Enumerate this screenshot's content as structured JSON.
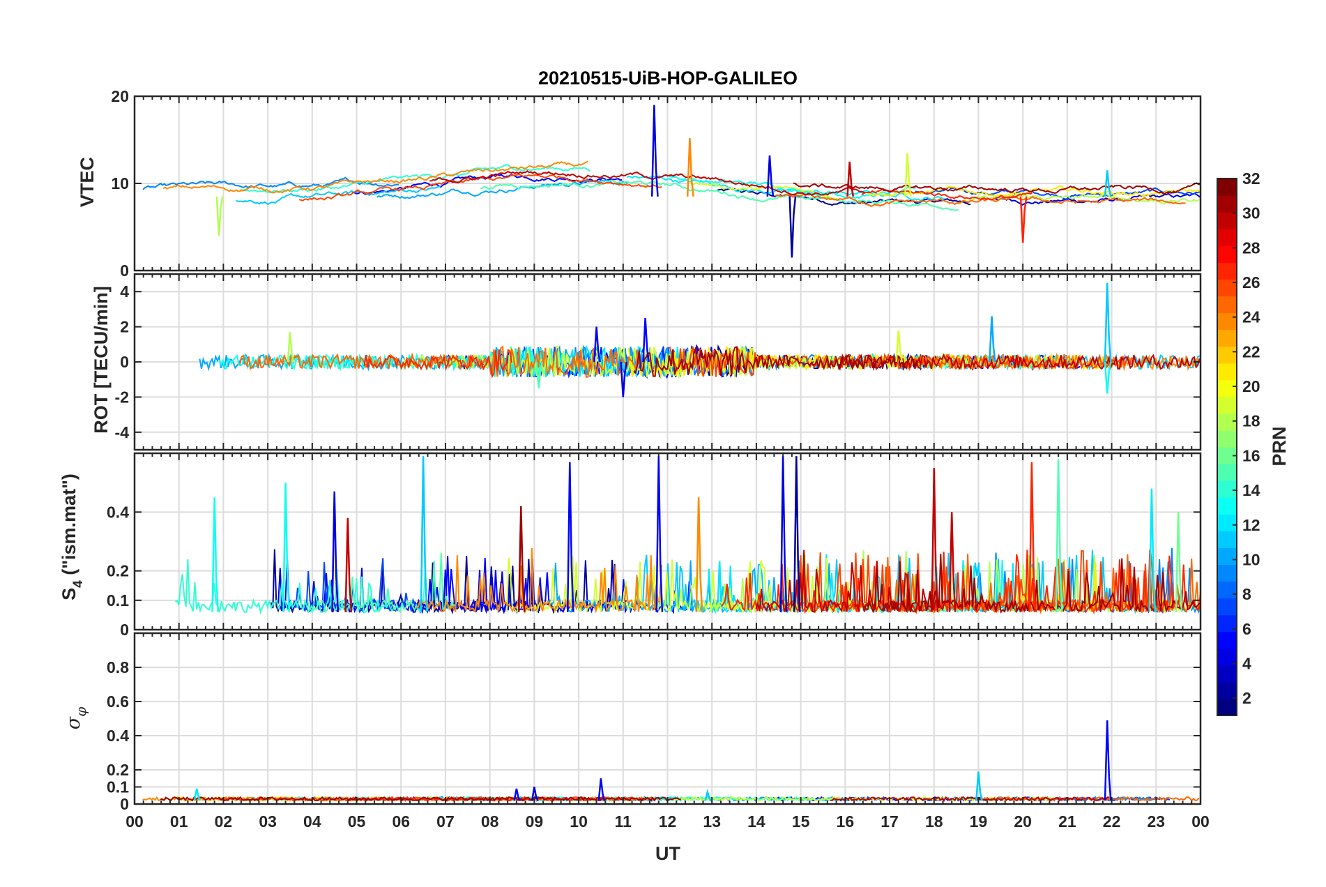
{
  "chart_data": {
    "type": "line",
    "title": "20210515-UiB-HOP-GALILEO",
    "xlabel": "UT",
    "x_ticks": [
      "00",
      "01",
      "02",
      "03",
      "04",
      "05",
      "06",
      "07",
      "08",
      "09",
      "10",
      "11",
      "12",
      "13",
      "14",
      "15",
      "16",
      "17",
      "18",
      "19",
      "20",
      "21",
      "22",
      "23",
      "00"
    ],
    "xlim_hours": [
      0,
      24
    ],
    "grid": true,
    "panels": [
      {
        "id": "vtec",
        "ylabel": "VTEC",
        "ylim": [
          0,
          20
        ],
        "y_ticks": [
          0,
          10,
          20
        ],
        "baseline": 8.5,
        "series_summary": "Multiple PRN tracks, VTEC mostly 6-12 TECU; peak near 19 at 11.7 UT, orange peak ~15 at 12.5 UT, dips to ~1.5 at 14.8 UT"
      },
      {
        "id": "rot",
        "ylabel": "ROT [TECU/min]",
        "ylim": [
          -5,
          5
        ],
        "y_ticks": [
          -4,
          -2,
          0,
          2,
          4
        ],
        "baseline": 0,
        "series_summary": "Rate of TEC mostly within +/-1 TECU/min; spikes to ~2.5 near 11.5 UT and ~4.5 near 22 UT"
      },
      {
        "id": "s4",
        "ylabel_main": "S",
        "ylabel_sub": "4",
        "ylabel_tail": " (\"ism.mat\")",
        "ylim": [
          0,
          0.6
        ],
        "y_ticks": [
          0,
          0.1,
          0.2,
          0.4
        ],
        "y_tick_labels": [
          "0",
          "0.1",
          "0.2",
          "0.4"
        ],
        "baseline": 0.06,
        "series_summary": "Amplitude scintillation index S4 baseline ~0.05-0.1 with bursts to 0.6"
      },
      {
        "id": "sigma",
        "ylabel_symbol": "σ",
        "ylabel_sub": "φ",
        "ylim": [
          0,
          1
        ],
        "y_ticks": [
          0,
          0.1,
          0.2,
          0.4,
          0.6,
          0.8
        ],
        "y_tick_labels": [
          "0",
          "0.1",
          "0.2",
          "0.4",
          "0.6",
          "0.8"
        ],
        "baseline": 0.02,
        "series_summary": "Phase scintillation index mostly <0.05; spikes ~0.15 at 10.5 UT, ~0.2 at 19 UT, ~0.5 at 22 UT"
      }
    ],
    "colorbar": {
      "label": "PRN",
      "range": [
        1,
        32
      ],
      "ticks": [
        2,
        4,
        6,
        8,
        10,
        12,
        14,
        16,
        18,
        20,
        22,
        24,
        26,
        28,
        30,
        32
      ],
      "colormap": "jet"
    },
    "prns": [
      2,
      4,
      5,
      7,
      9,
      10,
      11,
      12,
      13,
      14,
      15,
      18,
      19,
      21,
      24,
      25,
      26,
      27,
      30,
      31
    ],
    "spikes": {
      "vtec": [
        [
          11.7,
          19,
          4
        ],
        [
          12.5,
          15.2,
          24
        ],
        [
          14.3,
          13.2,
          4
        ],
        [
          14.8,
          1.5,
          2
        ],
        [
          16.1,
          12.5,
          30
        ],
        [
          17.4,
          13.5,
          19
        ],
        [
          20.0,
          3.2,
          27
        ],
        [
          21.9,
          11.5,
          11
        ],
        [
          1.9,
          4,
          18
        ]
      ],
      "rot": [
        [
          11.5,
          2.5,
          5
        ],
        [
          11.0,
          -2.0,
          4
        ],
        [
          10.4,
          2.0,
          5
        ],
        [
          21.9,
          4.5,
          11
        ],
        [
          21.9,
          -1.8,
          13
        ],
        [
          19.3,
          2.6,
          10
        ],
        [
          17.2,
          1.8,
          19
        ],
        [
          3.5,
          1.7,
          18
        ],
        [
          9.1,
          -1.5,
          15
        ]
      ],
      "s4": [
        [
          6.5,
          0.59,
          11
        ],
        [
          9.8,
          0.57,
          5
        ],
        [
          11.8,
          0.59,
          5
        ],
        [
          14.6,
          0.59,
          4
        ],
        [
          14.9,
          0.59,
          2
        ],
        [
          18.0,
          0.55,
          30
        ],
        [
          20.2,
          0.57,
          27
        ],
        [
          20.8,
          0.58,
          15
        ],
        [
          3.4,
          0.5,
          13
        ],
        [
          4.5,
          0.47,
          4
        ],
        [
          8.7,
          0.42,
          31
        ],
        [
          12.7,
          0.45,
          24
        ],
        [
          23.5,
          0.4,
          16
        ],
        [
          22.9,
          0.48,
          12
        ],
        [
          1.8,
          0.45,
          13
        ],
        [
          4.8,
          0.38,
          30
        ],
        [
          18.4,
          0.4,
          30
        ]
      ],
      "sigma": [
        [
          21.9,
          0.49,
          5
        ],
        [
          19.0,
          0.19,
          11
        ],
        [
          10.5,
          0.15,
          5
        ],
        [
          1.4,
          0.09,
          12
        ],
        [
          8.6,
          0.09,
          5
        ],
        [
          9.0,
          0.1,
          4
        ],
        [
          12.9,
          0.07,
          11
        ]
      ]
    }
  }
}
